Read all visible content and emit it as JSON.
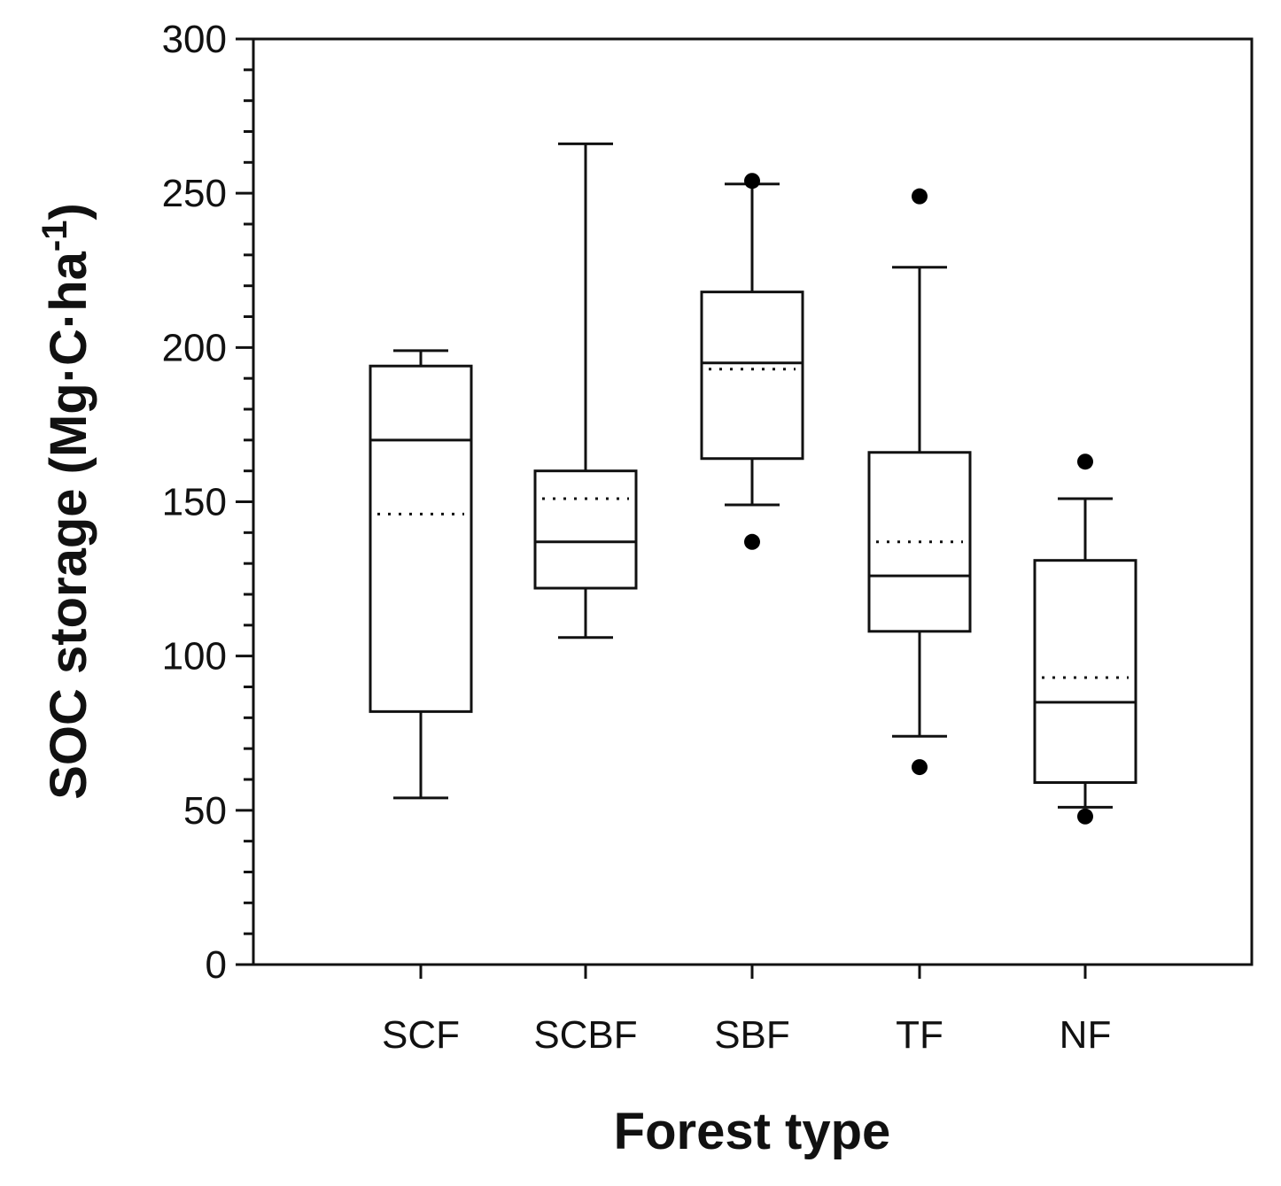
{
  "chart_data": {
    "type": "box",
    "title": "",
    "xlabel": "Forest type",
    "ylabel_main": "SOC storage (Mg·C·ha",
    "ylabel_sup": "-1",
    "ylabel_close": ")",
    "ylim": [
      0,
      300
    ],
    "yticks": [
      0,
      50,
      100,
      150,
      200,
      250,
      300
    ],
    "ytick_labels": [
      "0",
      "50",
      "100",
      "150",
      "200",
      "250",
      "300"
    ],
    "y_minor_step": 10,
    "grid": false,
    "legend": "none",
    "categories": [
      "SCF",
      "SCBF",
      "SBF",
      "TF",
      "NF"
    ],
    "boxes": [
      {
        "category": "SCF",
        "whisker_low": 54,
        "q1": 82,
        "median": 170,
        "mean": 146,
        "q3": 194,
        "whisker_high": 199,
        "outliers": []
      },
      {
        "category": "SCBF",
        "whisker_low": 106,
        "q1": 122,
        "median": 137,
        "mean": 151,
        "q3": 160,
        "whisker_high": 266,
        "outliers": []
      },
      {
        "category": "SBF",
        "whisker_low": 149,
        "q1": 164,
        "median": 195,
        "mean": 193,
        "q3": 218,
        "whisker_high": 253,
        "outliers": [
          137,
          254
        ]
      },
      {
        "category": "TF",
        "whisker_low": 74,
        "q1": 108,
        "median": 126,
        "mean": 137,
        "q3": 166,
        "whisker_high": 226,
        "outliers": [
          64,
          249
        ]
      },
      {
        "category": "NF",
        "whisker_low": 51,
        "q1": 59,
        "median": 85,
        "mean": 93,
        "q3": 131,
        "whisker_high": 151,
        "outliers": [
          48,
          163
        ]
      }
    ],
    "colors": {
      "line": "#111111",
      "box_fill": "#ffffff",
      "outlier": "#000000"
    }
  }
}
